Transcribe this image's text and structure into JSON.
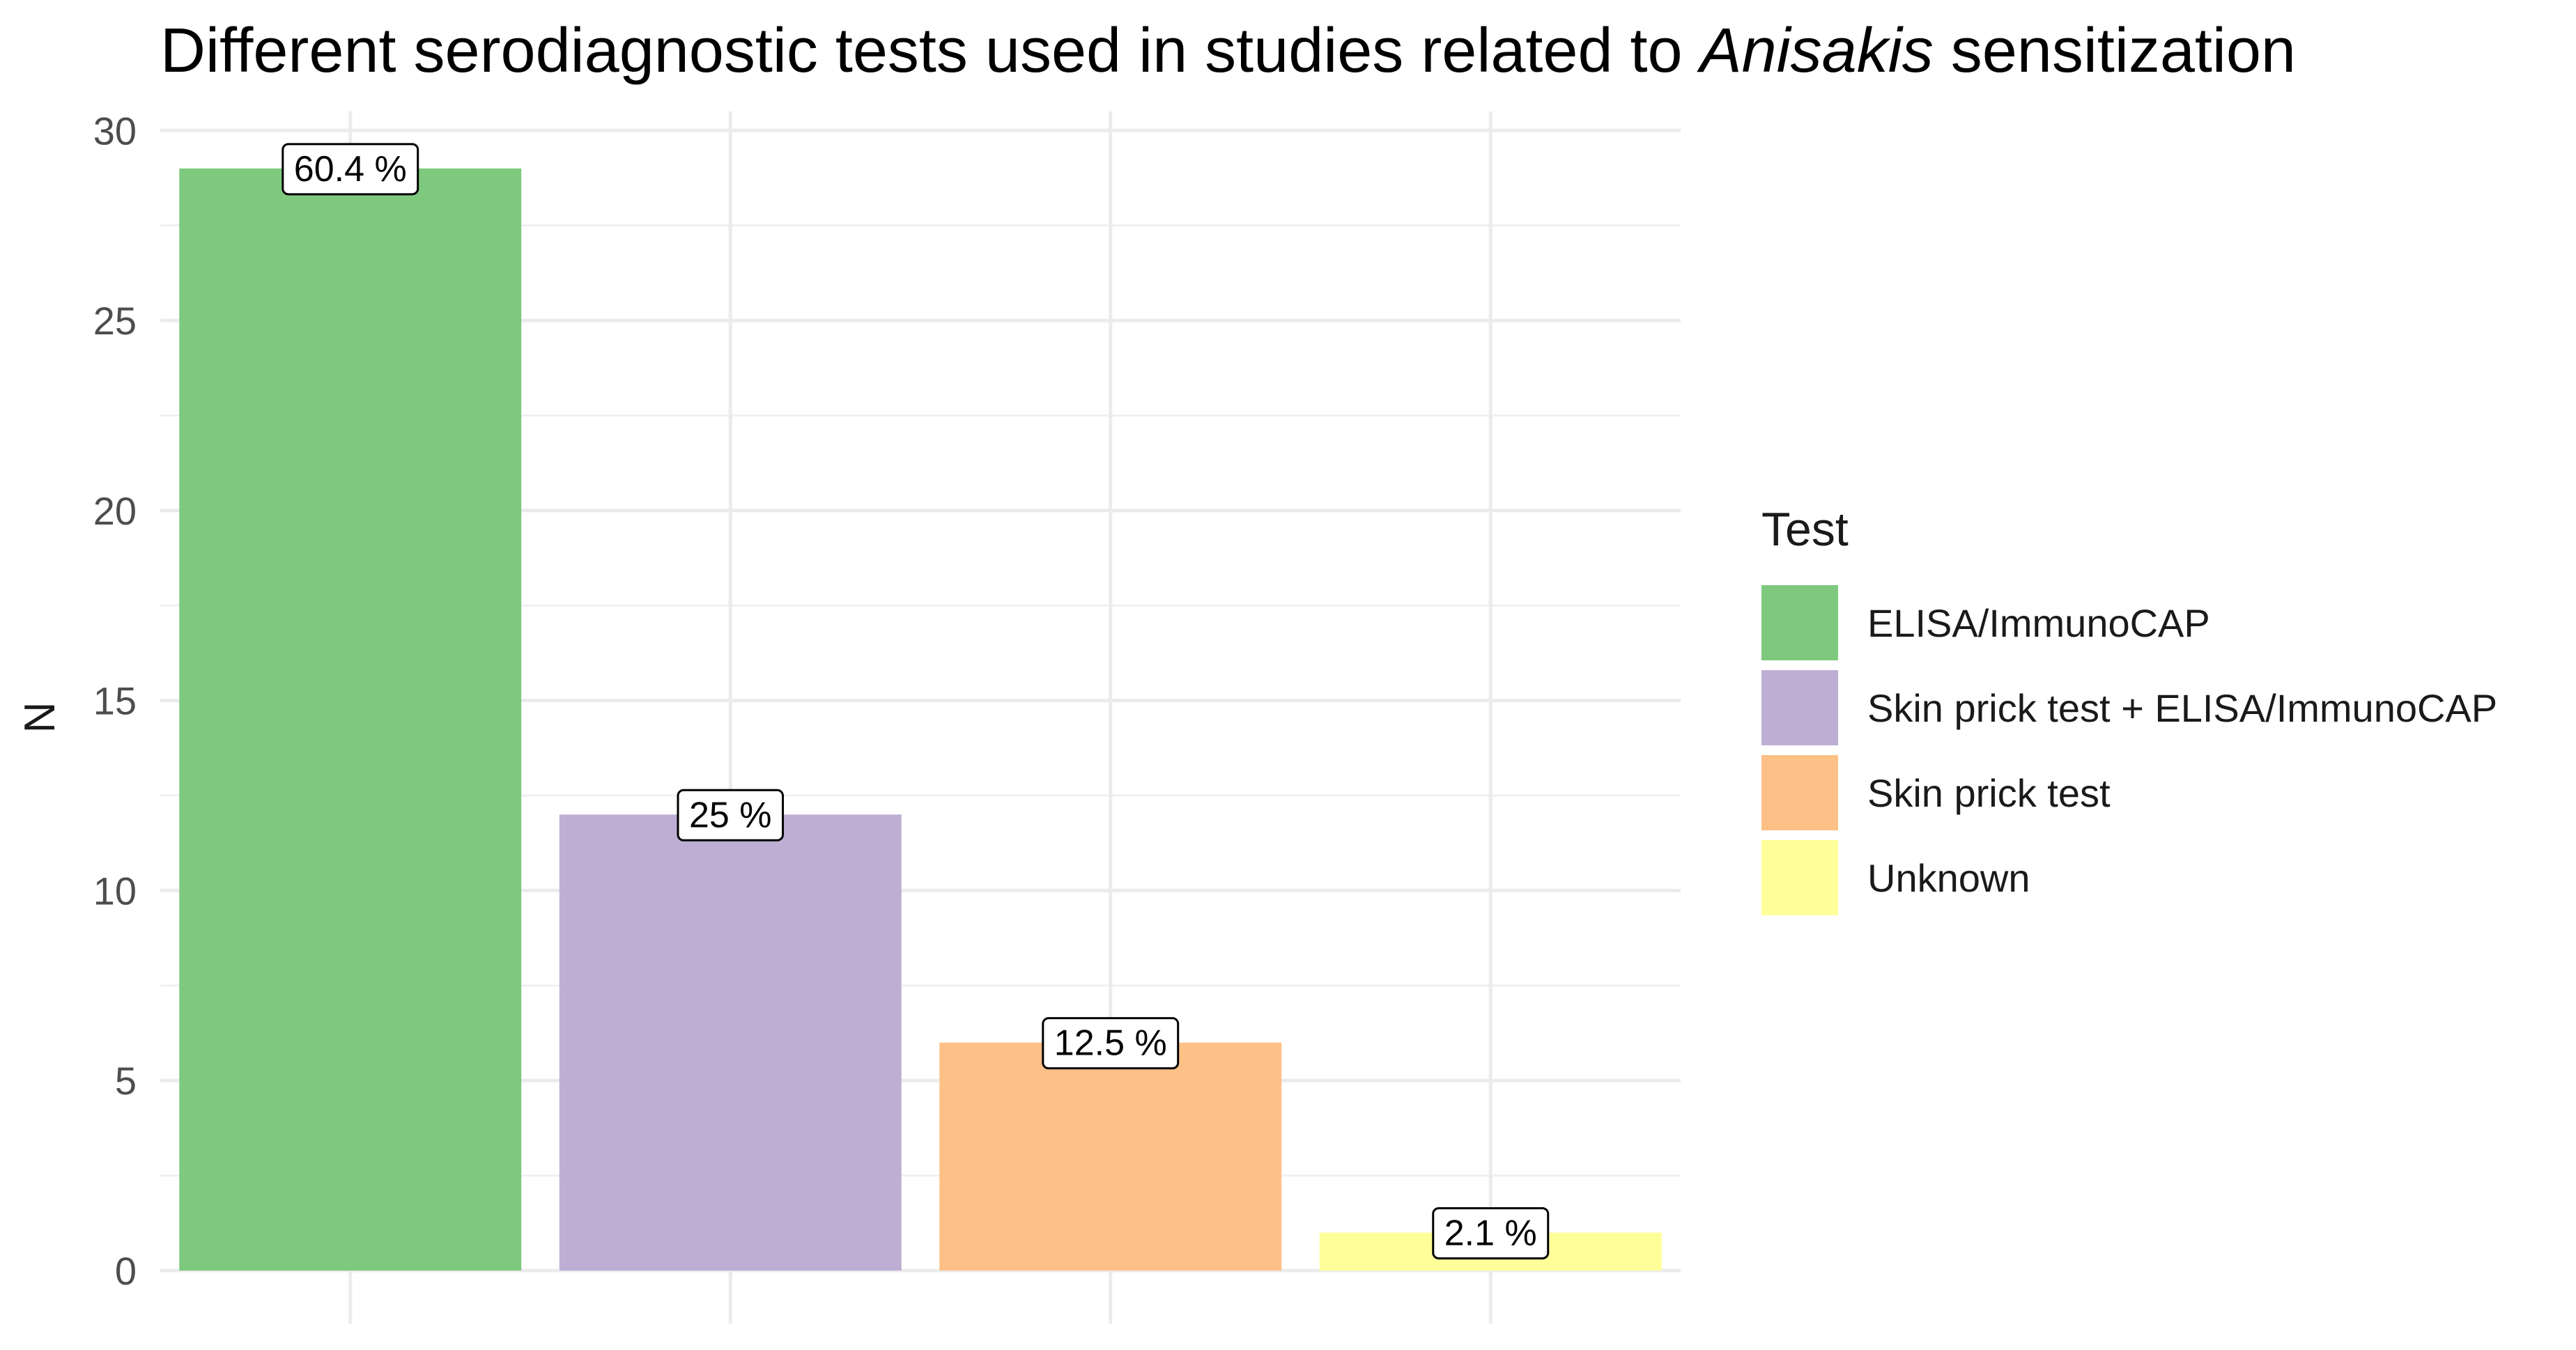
{
  "chart_data": {
    "type": "bar",
    "title_prefix": "Different serodiagnostic tests used in studies related to ",
    "title_italic": "Anisakis",
    "title_suffix": " sensitization",
    "xlabel": "",
    "ylabel": "N",
    "ylim": [
      0,
      30.5
    ],
    "yticks": [
      0,
      5,
      10,
      15,
      20,
      25,
      30
    ],
    "grid": true,
    "legend_title": "Test",
    "legend_position": "right",
    "categories": [
      "ELISA/ImmunoCAP",
      "Skin prick test + ELISA/ImmunoCAP",
      "Skin prick test",
      "Unknown"
    ],
    "values": [
      29,
      12,
      6,
      1
    ],
    "data_labels": [
      "60.4 %",
      "25 %",
      "12.5 %",
      "2.1 %"
    ],
    "colors": [
      "#7fc97f",
      "#beaed4",
      "#fdc086",
      "#ffff99"
    ]
  }
}
